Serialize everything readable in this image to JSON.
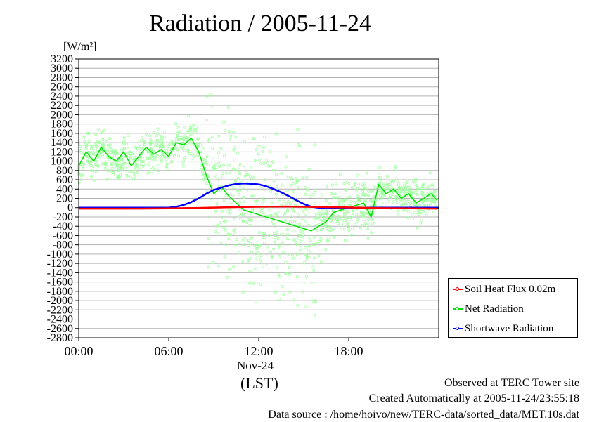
{
  "chart_data": {
    "type": "line",
    "title": "Radiation / 2005-11-24",
    "ylabel": "[W/m²]",
    "xlabel": "(LST)",
    "x_date_label": "Nov-24",
    "ylim": [
      -2800,
      3200
    ],
    "ytick_step": 200,
    "x_ticks": [
      "00:00",
      "06:00",
      "12:00",
      "18:00"
    ],
    "x_tick_hours": [
      0,
      6,
      12,
      18
    ],
    "xlim_hours": [
      0,
      24
    ],
    "grid": "horizontal",
    "legend_position": "right",
    "series": [
      {
        "name": "Soil Heat Flux 0.02m",
        "color": "#ff0000",
        "x_hours": [
          0,
          2,
          4,
          6,
          8,
          10,
          12,
          14,
          16,
          18,
          20,
          22,
          23.9
        ],
        "values": [
          -20,
          -20,
          -20,
          -15,
          -5,
          10,
          20,
          25,
          15,
          5,
          -10,
          -15,
          -20
        ]
      },
      {
        "name": "Net Radiation",
        "color": "#00e000",
        "scatter_color": "#99ff99",
        "x_hours": [
          0,
          0.5,
          1,
          1.5,
          2,
          2.5,
          3,
          3.5,
          4,
          4.5,
          5,
          5.5,
          6,
          6.5,
          7,
          7.5,
          8,
          8.5,
          9,
          9.5,
          10,
          10.5,
          11,
          11.5,
          12,
          12.5,
          13,
          13.5,
          14,
          14.5,
          15,
          15.5,
          16,
          16.5,
          17,
          17.5,
          18,
          18.5,
          19,
          19.5,
          20,
          20.5,
          21,
          21.5,
          22,
          22.5,
          23,
          23.5,
          23.9
        ],
        "values": [
          900,
          1200,
          1000,
          1300,
          1100,
          1000,
          1200,
          900,
          1100,
          1300,
          1150,
          1250,
          1100,
          1400,
          1350,
          1500,
          1200,
          700,
          300,
          450,
          250,
          100,
          -50,
          -100,
          -150,
          -200,
          -250,
          -300,
          -350,
          -400,
          -450,
          -500,
          -400,
          -300,
          -100,
          -50,
          0,
          50,
          100,
          -200,
          500,
          300,
          400,
          200,
          300,
          100,
          200,
          300,
          150
        ]
      },
      {
        "name": "Shortwave Radiation",
        "color": "#0000ff",
        "x_hours": [
          0,
          6,
          6.5,
          7,
          7.5,
          8,
          8.5,
          9,
          9.5,
          10,
          10.5,
          11,
          11.5,
          12,
          12.5,
          13,
          13.5,
          14,
          14.5,
          15,
          15.5,
          16,
          24
        ],
        "values": [
          0,
          0,
          20,
          60,
          120,
          200,
          300,
          380,
          430,
          480,
          510,
          520,
          515,
          500,
          460,
          400,
          330,
          250,
          160,
          80,
          20,
          0,
          0
        ]
      }
    ]
  },
  "footer": {
    "line1": "Observed at TERC Tower site",
    "line2": "Created Automatically at 2005-11-24/23:55:18",
    "line3": "Data source : /home/hoivo/new/TERC-data/sorted_data/MET.10s.dat"
  }
}
